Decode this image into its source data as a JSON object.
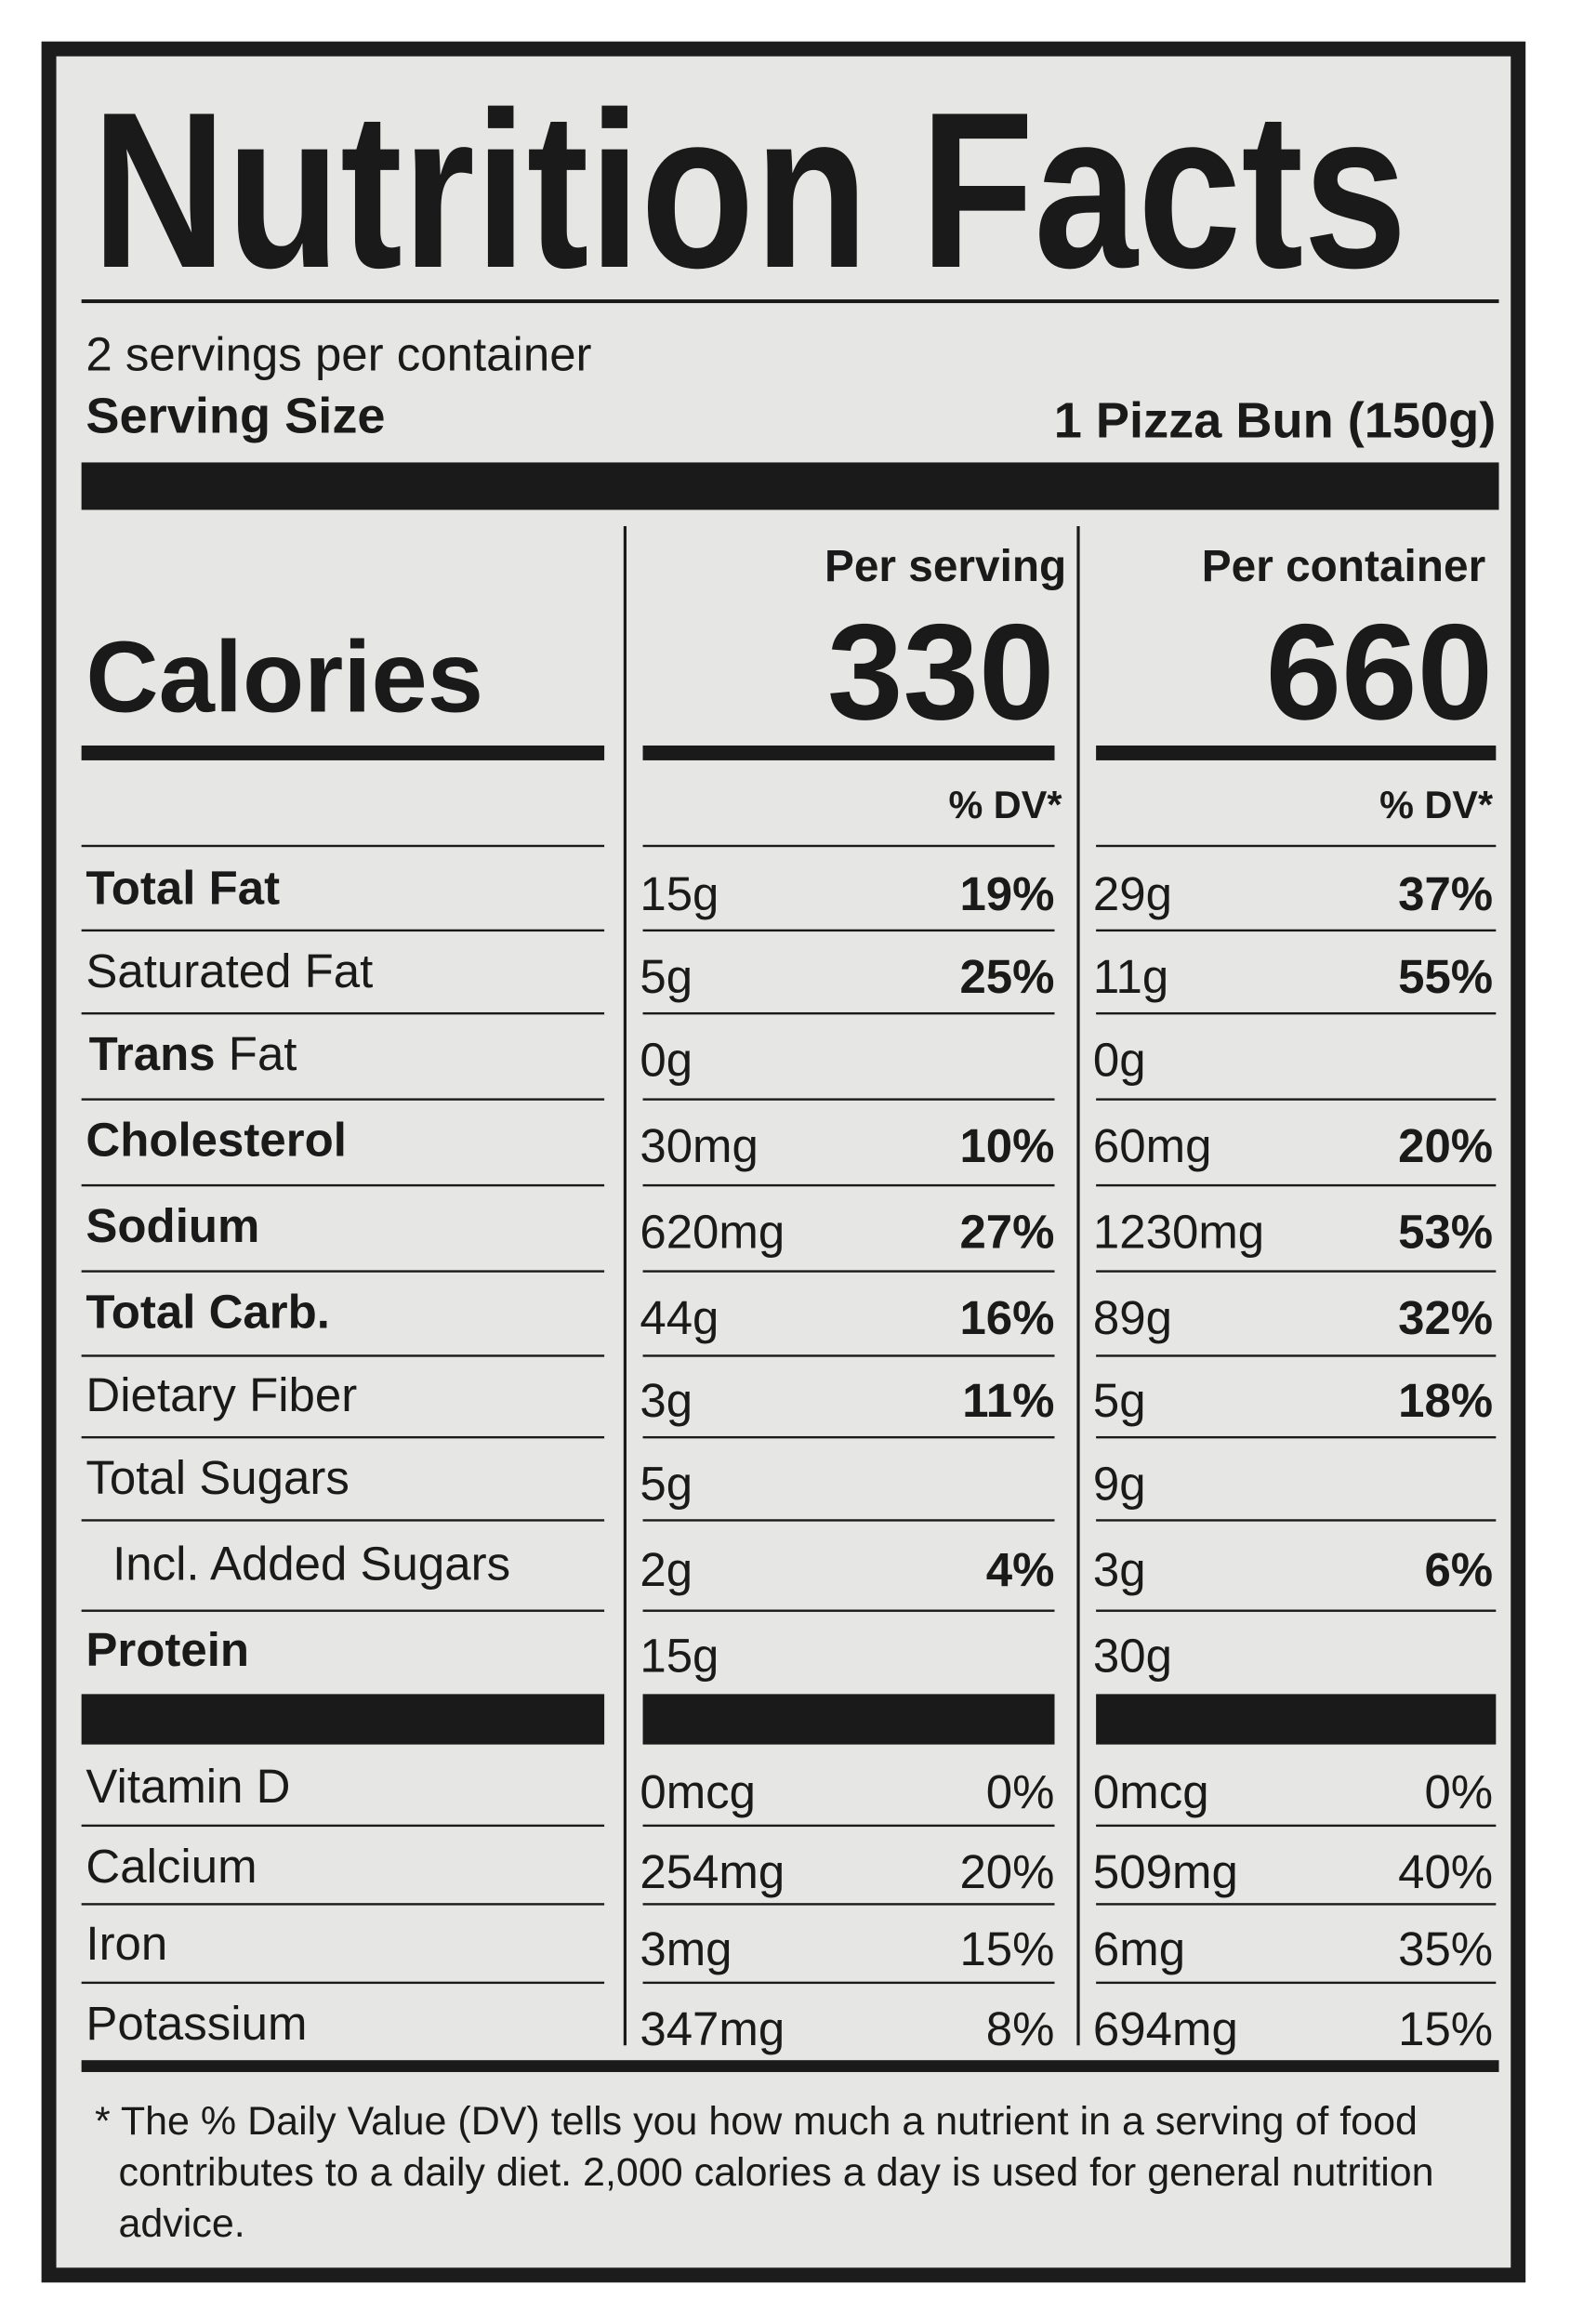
{
  "header": {
    "title": "Nutrition Facts",
    "servings": "2 servings per container",
    "serving_size_label": "Serving Size",
    "serving_size_value": "1 Pizza Bun (150g)"
  },
  "columns": [
    "Per serving",
    "Per container"
  ],
  "calories": {
    "label": "Calories",
    "values": [
      330,
      660
    ]
  },
  "dv_header": [
    "% DV*",
    "% DV*"
  ],
  "nutrients": [
    {
      "label": "Total Fat",
      "bold": true,
      "cells": [
        [
          "15g",
          "19%"
        ],
        [
          "29g",
          "37%"
        ]
      ]
    },
    {
      "label": "Saturated Fat",
      "bold": false,
      "cells": [
        [
          "5g",
          "25%"
        ],
        [
          "11g",
          "55%"
        ]
      ]
    },
    {
      "label": [
        "Trans",
        "Fat"
      ],
      "bold": false,
      "cells": [
        [
          "0g",
          null
        ],
        [
          "0g",
          null
        ]
      ]
    },
    {
      "label": "Cholesterol",
      "bold": true,
      "cells": [
        [
          "30mg",
          "10%"
        ],
        [
          "60mg",
          "20%"
        ]
      ]
    },
    {
      "label": "Sodium",
      "bold": true,
      "cells": [
        [
          "620mg",
          "27%"
        ],
        [
          "1230mg",
          "53%"
        ]
      ]
    },
    {
      "label": "Total Carb.",
      "bold": true,
      "cells": [
        [
          "44g",
          "16%"
        ],
        [
          "89g",
          "32%"
        ]
      ]
    },
    {
      "label": "Dietary Fiber",
      "bold": false,
      "cells": [
        [
          "3g",
          "11%"
        ],
        [
          "5g",
          "18%"
        ]
      ]
    },
    {
      "label": "Total Sugars",
      "bold": false,
      "cells": [
        [
          "5g",
          null
        ],
        [
          "9g",
          null
        ]
      ]
    },
    {
      "label": "Incl. Added Sugars",
      "bold": false,
      "indent": true,
      "cells": [
        [
          "2g",
          "4%"
        ],
        [
          "3g",
          "6%"
        ]
      ]
    },
    {
      "label": "Protein",
      "bold": true,
      "cells": [
        [
          "15g",
          null
        ],
        [
          "30g",
          null
        ]
      ]
    }
  ],
  "vitamins": [
    {
      "label": "Vitamin D",
      "cells": [
        [
          "0mcg",
          "0%"
        ],
        [
          "0mcg",
          "0%"
        ]
      ]
    },
    {
      "label": "Calcium",
      "cells": [
        [
          "254mg",
          "20%"
        ],
        [
          "509mg",
          "40%"
        ]
      ]
    },
    {
      "label": "Iron",
      "cells": [
        [
          "3mg",
          "15%"
        ],
        [
          "6mg",
          "35%"
        ]
      ]
    },
    {
      "label": "Potassium",
      "cells": [
        [
          "347mg",
          "8%"
        ],
        [
          "694mg",
          "15%"
        ]
      ]
    }
  ],
  "footnote": [
    "* The % Daily Value (DV) tells you how much a nutrient in a serving of food",
    "contributes to a daily diet. 2,000 calories a day is used for general nutrition",
    "advice."
  ]
}
